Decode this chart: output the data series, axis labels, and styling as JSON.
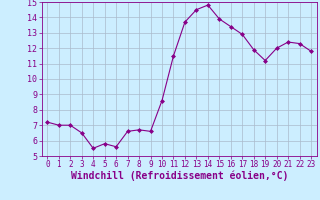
{
  "x": [
    0,
    1,
    2,
    3,
    4,
    5,
    6,
    7,
    8,
    9,
    10,
    11,
    12,
    13,
    14,
    15,
    16,
    17,
    18,
    19,
    20,
    21,
    22,
    23
  ],
  "y": [
    7.2,
    7.0,
    7.0,
    6.5,
    5.5,
    5.8,
    5.6,
    6.6,
    6.7,
    6.6,
    8.6,
    11.5,
    13.7,
    14.5,
    14.8,
    13.9,
    13.4,
    12.9,
    11.9,
    11.2,
    12.0,
    12.4,
    12.3,
    11.8
  ],
  "line_color": "#880088",
  "marker": "D",
  "marker_size": 2.0,
  "bg_color": "#cceeff",
  "grid_color": "#aabbcc",
  "xlabel": "Windchill (Refroidissement éolien,°C)",
  "xlabel_color": "#880088",
  "ylim": [
    5,
    15
  ],
  "xlim_left": -0.5,
  "xlim_right": 23.5,
  "yticks": [
    5,
    6,
    7,
    8,
    9,
    10,
    11,
    12,
    13,
    14,
    15
  ],
  "xticks": [
    0,
    1,
    2,
    3,
    4,
    5,
    6,
    7,
    8,
    9,
    10,
    11,
    12,
    13,
    14,
    15,
    16,
    17,
    18,
    19,
    20,
    21,
    22,
    23
  ],
  "tick_color": "#880088",
  "ytick_fontsize": 6.0,
  "xtick_fontsize": 5.5,
  "xlabel_fontsize": 7.0,
  "spine_color": "#880088",
  "linewidth": 0.8
}
